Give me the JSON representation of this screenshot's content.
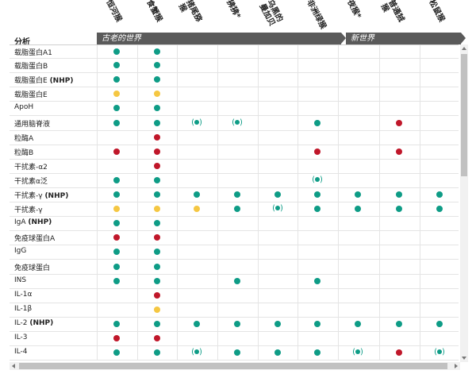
{
  "colors": {
    "green": "#0e9c86",
    "yellow": "#f5c742",
    "red": "#c0172a"
  },
  "columns": [
    {
      "lines": [
        "恒河猴"
      ],
      "key": "c0"
    },
    {
      "lines": [
        "食蟹猴"
      ],
      "key": "c1"
    },
    {
      "lines": [
        "猪尾猕",
        "猴"
      ],
      "key": "c2"
    },
    {
      "lines": [
        "狒狒*"
      ],
      "key": "c3"
    },
    {
      "lines": [
        "乌黑的",
        "曼加贝"
      ],
      "key": "c4"
    },
    {
      "lines": [
        "非洲绿猴"
      ],
      "key": "c5"
    },
    {
      "lines": [
        "夜猴*"
      ],
      "key": "c6"
    },
    {
      "lines": [
        "普通狨",
        "猴"
      ],
      "key": "c7"
    },
    {
      "lines": [
        "松鼠猴"
      ],
      "key": "c8"
    }
  ],
  "analysis_label": "分析",
  "groups": {
    "old_world": "古老的世界",
    "new_world": "新世界"
  },
  "rows": [
    {
      "label": "载脂蛋白A1",
      "bold": "",
      "cells": [
        "g",
        "g",
        "",
        "",
        "",
        "",
        "",
        "",
        ""
      ]
    },
    {
      "label": "载脂蛋白B",
      "bold": "",
      "cells": [
        "g",
        "g",
        "",
        "",
        "",
        "",
        "",
        "",
        ""
      ]
    },
    {
      "label": "载脂蛋白E ",
      "bold": "(NHP)",
      "cells": [
        "g",
        "g",
        "",
        "",
        "",
        "",
        "",
        "",
        ""
      ]
    },
    {
      "label": "载脂蛋白E",
      "bold": "",
      "cells": [
        "y",
        "y",
        "",
        "",
        "",
        "",
        "",
        "",
        ""
      ]
    },
    {
      "label": "ApoH",
      "bold": "",
      "cells": [
        "g",
        "g",
        "",
        "",
        "",
        "",
        "",
        "",
        ""
      ]
    },
    {
      "label": "通用脑脊液",
      "bold": "",
      "cells": [
        "g",
        "g",
        "rg",
        "rg",
        "",
        "g",
        "",
        "r",
        ""
      ]
    },
    {
      "label": "粒酶A",
      "bold": "",
      "cells": [
        "",
        "r",
        "",
        "",
        "",
        "",
        "",
        "",
        ""
      ]
    },
    {
      "label": "粒酶B",
      "bold": "",
      "cells": [
        "r",
        "r",
        "",
        "",
        "",
        "r",
        "",
        "r",
        ""
      ]
    },
    {
      "label": "干扰素-α2",
      "bold": "",
      "cells": [
        "",
        "r",
        "",
        "",
        "",
        "",
        "",
        "",
        ""
      ]
    },
    {
      "label": "干扰素α泛",
      "bold": "",
      "cells": [
        "g",
        "g",
        "",
        "",
        "",
        "rg",
        "",
        "",
        ""
      ]
    },
    {
      "label": "干扰素-γ ",
      "bold": "(NHP)",
      "cells": [
        "g",
        "g",
        "g",
        "g",
        "g",
        "g",
        "g",
        "g",
        "g"
      ]
    },
    {
      "label": "干扰素-γ",
      "bold": "",
      "cells": [
        "y",
        "y",
        "y",
        "g",
        "rg",
        "g",
        "g",
        "g",
        "g"
      ]
    },
    {
      "label": "IgA ",
      "bold": "(NHP)",
      "cells": [
        "g",
        "g",
        "",
        "",
        "",
        "",
        "",
        "",
        ""
      ]
    },
    {
      "label": "免疫球蛋白A",
      "bold": "",
      "cells": [
        "r",
        "r",
        "",
        "",
        "",
        "",
        "",
        "",
        ""
      ]
    },
    {
      "label": "IgG",
      "bold": "",
      "cells": [
        "g",
        "g",
        "",
        "",
        "",
        "",
        "",
        "",
        ""
      ]
    },
    {
      "label": "免疫球蛋白",
      "bold": "",
      "cells": [
        "g",
        "g",
        "",
        "",
        "",
        "",
        "",
        "",
        ""
      ]
    },
    {
      "label": "INS",
      "bold": "",
      "cells": [
        "g",
        "g",
        "",
        "g",
        "",
        "g",
        "",
        "",
        ""
      ]
    },
    {
      "label": "IL-1α",
      "bold": "",
      "cells": [
        "",
        "r",
        "",
        "",
        "",
        "",
        "",
        "",
        ""
      ]
    },
    {
      "label": "IL-1β",
      "bold": "",
      "cells": [
        "",
        "y",
        "",
        "",
        "",
        "",
        "",
        "",
        ""
      ]
    },
    {
      "label": "IL-2 ",
      "bold": "(NHP)",
      "cells": [
        "g",
        "g",
        "g",
        "g",
        "g",
        "g",
        "g",
        "g",
        "g"
      ]
    },
    {
      "label": "IL-3",
      "bold": "",
      "cells": [
        "r",
        "r",
        "",
        "",
        "",
        "",
        "",
        "",
        ""
      ]
    },
    {
      "label": "IL-4",
      "bold": "",
      "cells": [
        "g",
        "g",
        "rg",
        "g",
        "g",
        "g",
        "rg",
        "r",
        "rg"
      ]
    }
  ]
}
